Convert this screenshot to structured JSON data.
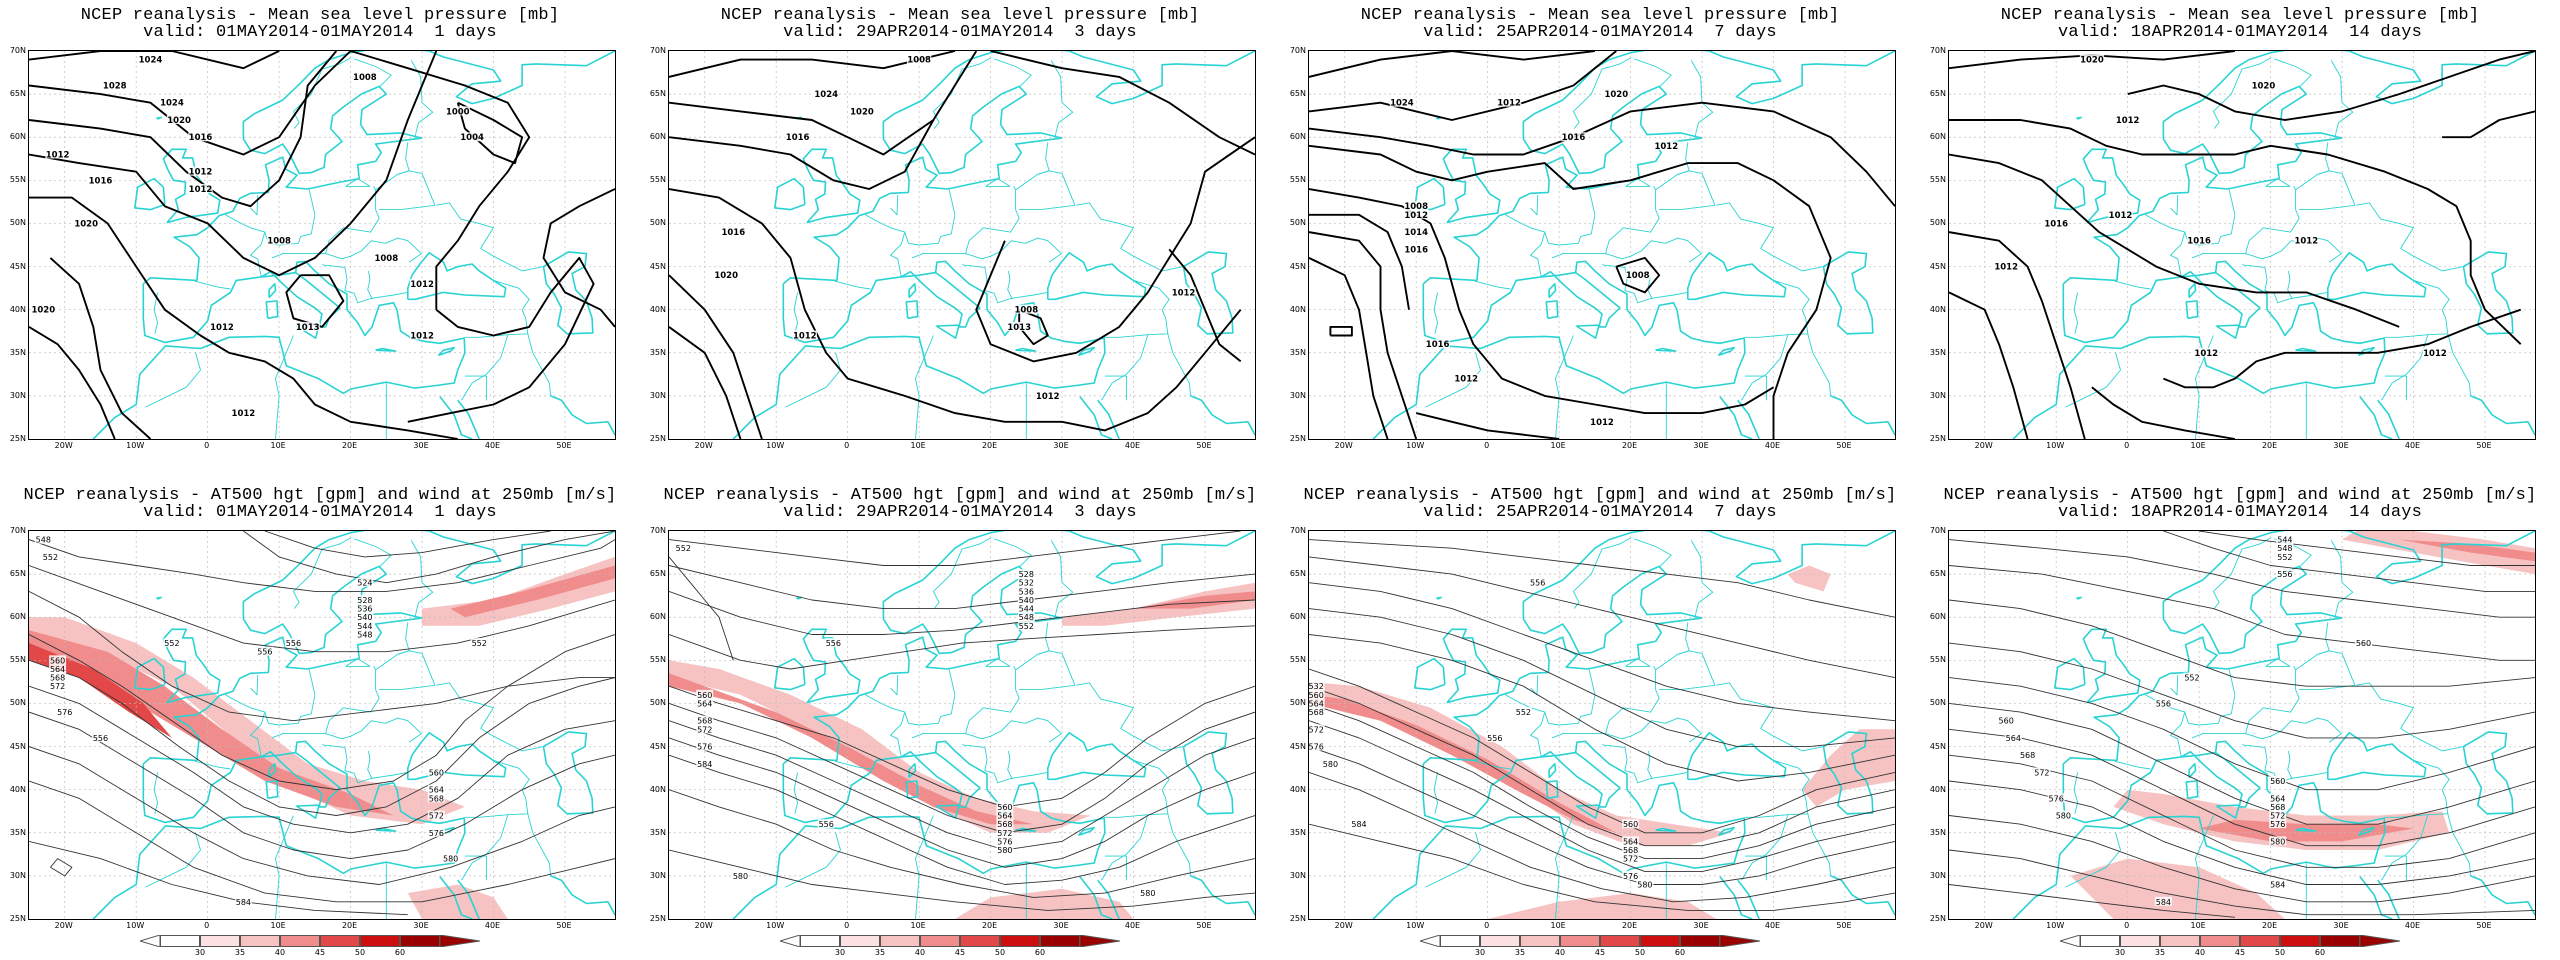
{
  "colors": {
    "coast": "#29d3d3",
    "contour_black": "#000000",
    "wind_light": "#f7c2c2",
    "wind_medium": "#f08c8c",
    "wind_strong": "#e34848",
    "wind_max": "#cc1010"
  },
  "lat_labels": [
    "70N",
    "65N",
    "60N",
    "55N",
    "50N",
    "45N",
    "40N",
    "35N",
    "30N",
    "25N"
  ],
  "lon_labels": [
    "20W",
    "10W",
    "0",
    "10E",
    "20E",
    "30E",
    "40E",
    "50E"
  ],
  "colorbar_ticks": [
    "30",
    "35",
    "40",
    "45",
    "50",
    "60"
  ],
  "panels": [
    {
      "id": "mslp-1",
      "title_line1": "NCEP reanalysis - Mean sea level pressure [mb]",
      "title_line2": "valid: 01MAY2014-01MAY2014  1 days",
      "contour_labels": [
        "1024",
        "1028",
        "1008",
        "1024",
        "1020",
        "1000",
        "1016",
        "1004",
        "1012",
        "1012",
        "1016",
        "1012",
        "1020",
        "1008",
        "1008",
        "1012",
        "1020",
        "1012",
        "1013",
        "1012",
        "1012"
      ]
    },
    {
      "id": "mslp-3",
      "title_line1": "NCEP reanalysis - Mean sea level pressure [mb]",
      "title_line2": "valid: 29APR2014-01MAY2014  3 days",
      "contour_labels": [
        "1008",
        "1024",
        "1020",
        "1016",
        "1016",
        "1020",
        "1008",
        "1012",
        "1012",
        "1012",
        "1013"
      ]
    },
    {
      "id": "mslp-7",
      "title_line1": "NCEP reanalysis - Mean sea level pressure [mb]",
      "title_line2": "valid: 25APR2014-01MAY2014  7 days",
      "contour_labels": [
        "1020",
        "1024",
        "1012",
        "1016",
        "1008",
        "1012",
        "1012",
        "1014",
        "1016",
        "1008",
        "1016",
        "1012",
        "1012"
      ]
    },
    {
      "id": "mslp-14",
      "title_line1": "NCEP reanalysis - Mean sea level pressure [mb]",
      "title_line2": "valid: 18APR2014-01MAY2014  14 days",
      "contour_labels": [
        "1020",
        "1020",
        "1012",
        "1016",
        "1012",
        "1016",
        "1012",
        "1012",
        "1012",
        "1012"
      ]
    },
    {
      "id": "z500-1",
      "title_line1": "NCEP reanalysis - AT500 hgt [gpm] and wind at 250mb [m/s]",
      "title_line2": "valid: 01MAY2014-01MAY2014  1 days",
      "contour_labels": [
        "548",
        "552",
        "524",
        "528",
        "536",
        "540",
        "544",
        "548",
        "556",
        "552",
        "552",
        "556",
        "560",
        "564",
        "568",
        "572",
        "576",
        "556",
        "560",
        "564",
        "568",
        "572",
        "576",
        "580",
        "584"
      ]
    },
    {
      "id": "z500-3",
      "title_line1": "NCEP reanalysis - AT500 hgt [gpm] and wind at 250mb [m/s]",
      "title_line2": "valid: 29APR2014-01MAY2014  3 days",
      "contour_labels": [
        "552",
        "528",
        "532",
        "536",
        "540",
        "544",
        "548",
        "552",
        "556",
        "560",
        "564",
        "568",
        "572",
        "576",
        "584",
        "580",
        "556",
        "560",
        "564",
        "568",
        "572",
        "576",
        "580",
        "580"
      ]
    },
    {
      "id": "z500-7",
      "title_line1": "NCEP reanalysis - AT500 hgt [gpm] and wind at 250mb [m/s]",
      "title_line2": "valid: 25APR2014-01MAY2014  7 days",
      "contour_labels": [
        "532",
        "552",
        "556",
        "560",
        "564",
        "568",
        "572",
        "576",
        "580",
        "584",
        "556",
        "560",
        "564",
        "568",
        "572",
        "576",
        "580"
      ]
    },
    {
      "id": "z500-14",
      "title_line1": "NCEP reanalysis - AT500 hgt [gpm] and wind at 250mb [m/s]",
      "title_line2": "valid: 18APR2014-01MAY2014  14 days",
      "contour_labels": [
        "544",
        "548",
        "552",
        "556",
        "560",
        "552",
        "556",
        "560",
        "564",
        "568",
        "572",
        "576",
        "580",
        "584",
        "560",
        "564",
        "568",
        "572",
        "576",
        "580",
        "584"
      ]
    }
  ]
}
